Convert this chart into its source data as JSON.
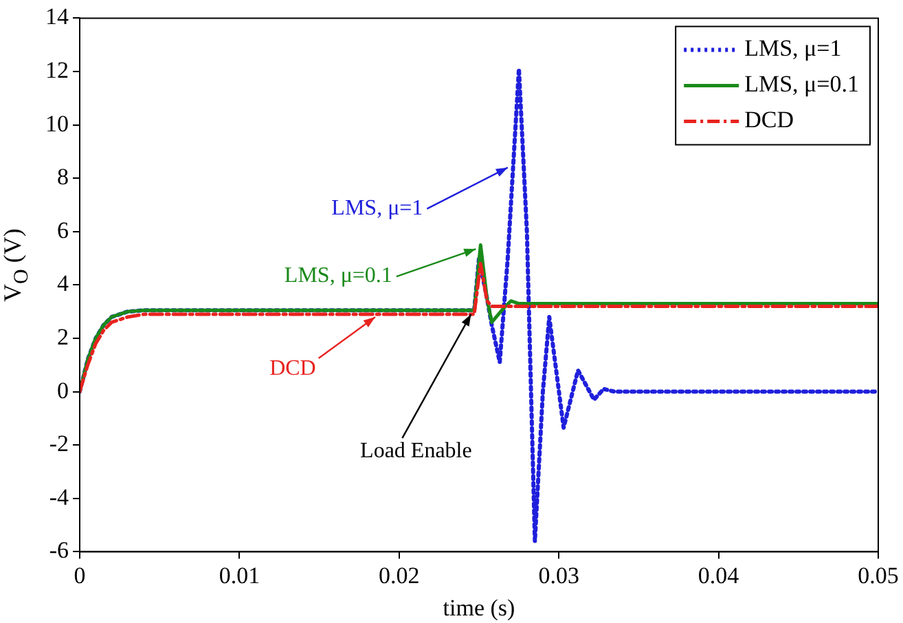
{
  "chart_data": {
    "type": "line",
    "xlabel": "time (s)",
    "ylabel": "V$_{O}$ (V)",
    "xlim": [
      0,
      0.05
    ],
    "xticks": [
      0,
      0.01,
      0.02,
      0.03,
      0.04,
      0.05
    ],
    "ylim": [
      -6,
      14
    ],
    "yticks": [
      -6,
      -4,
      -2,
      0,
      2,
      4,
      6,
      8,
      10,
      12,
      14
    ],
    "grid": false,
    "legend": "top right",
    "marker": "none",
    "series": [
      {
        "name": "LMS, μ=1",
        "color": "#1f1fdc",
        "line_style": "dotted",
        "x": [
          0,
          0.0005,
          0.001,
          0.0015,
          0.002,
          0.003,
          0.004,
          0.0247,
          0.025,
          0.0255,
          0.0258,
          0.0263,
          0.0268,
          0.0275,
          0.028,
          0.0285,
          0.029,
          0.0294,
          0.0303,
          0.0312,
          0.0322,
          0.0328,
          0.0335,
          0.05
        ],
        "values": [
          0,
          1.2,
          2.0,
          2.5,
          2.8,
          3.0,
          3.05,
          3.05,
          5.0,
          3.5,
          2.5,
          1.1,
          5.0,
          12.1,
          6.0,
          -5.6,
          0.0,
          2.8,
          -1.35,
          0.8,
          -0.3,
          0.1,
          0,
          0
        ]
      },
      {
        "name": "LMS, μ=0.1",
        "color": "#1a8a1a",
        "line_style": "solid",
        "x": [
          0,
          0.0005,
          0.001,
          0.0015,
          0.002,
          0.003,
          0.004,
          0.0247,
          0.0251,
          0.0255,
          0.0258,
          0.0265,
          0.027,
          0.0275,
          0.05
        ],
        "values": [
          0,
          1.2,
          2.0,
          2.5,
          2.8,
          3.0,
          3.05,
          3.05,
          5.5,
          3.5,
          2.6,
          3.1,
          3.4,
          3.3,
          3.3
        ]
      },
      {
        "name": "DCD",
        "color": "#e8231f",
        "line_style": "dashdot",
        "x": [
          0,
          0.0005,
          0.001,
          0.0015,
          0.002,
          0.003,
          0.004,
          0.0247,
          0.0251,
          0.0255,
          0.0258,
          0.0265,
          0.05
        ],
        "values": [
          0,
          1.0,
          1.8,
          2.3,
          2.6,
          2.8,
          2.9,
          2.9,
          4.8,
          3.4,
          3.2,
          3.2,
          3.2
        ]
      }
    ],
    "annotations": [
      {
        "text": "LMS, μ=1",
        "x": 0.0268,
        "y": 8.4
      },
      {
        "text": "LMS, μ=0.1",
        "x": 0.0248,
        "y": 5.35
      },
      {
        "text": "DCD",
        "x": 0.0185,
        "y": 2.8
      },
      {
        "text": "Load Enable",
        "x": 0.0245,
        "y": 2.9
      }
    ]
  }
}
